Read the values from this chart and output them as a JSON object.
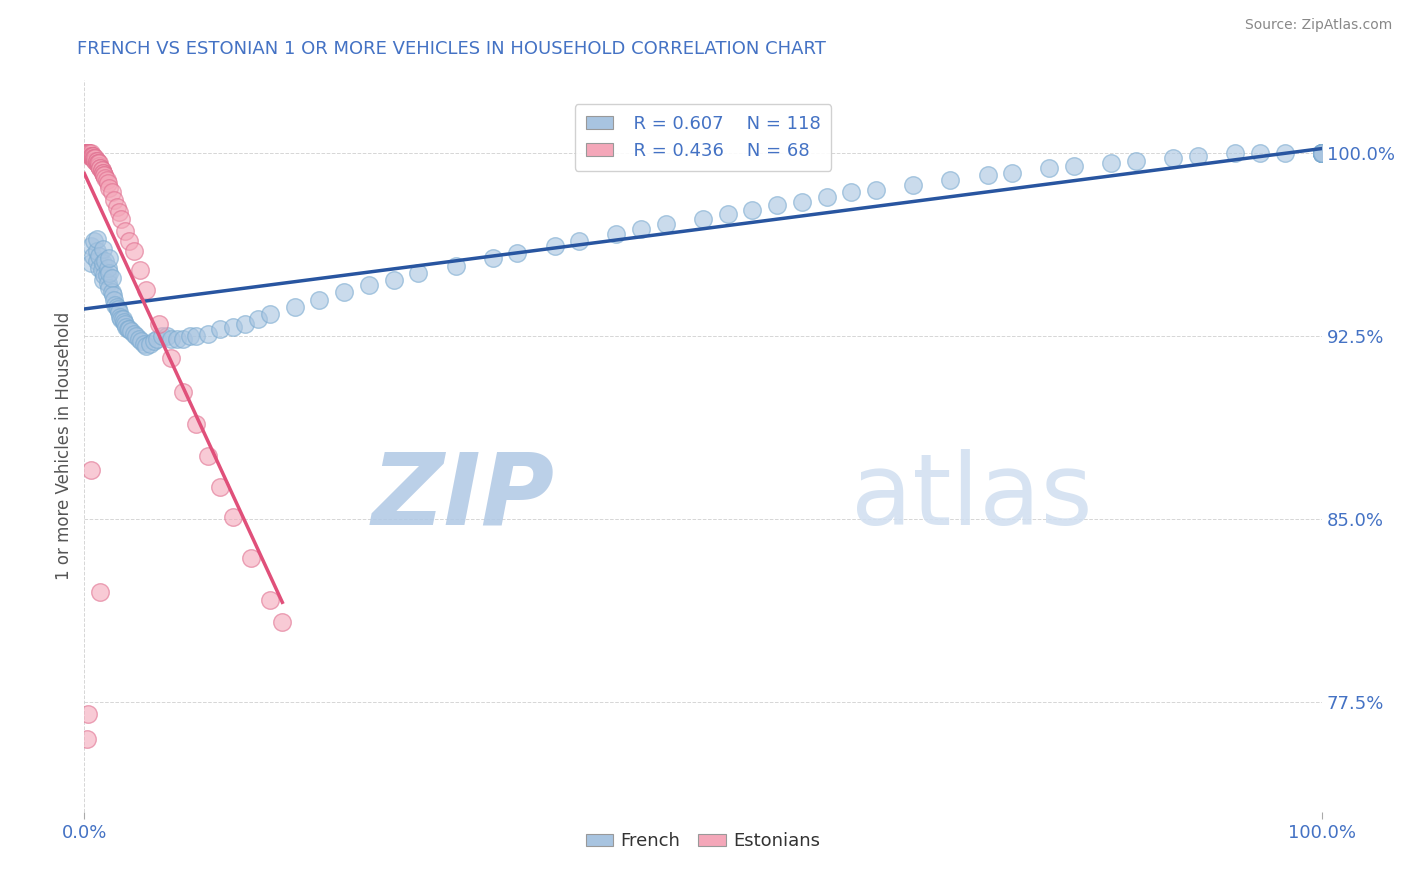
{
  "title": "FRENCH VS ESTONIAN 1 OR MORE VEHICLES IN HOUSEHOLD CORRELATION CHART",
  "source_text": "Source: ZipAtlas.com",
  "ylabel": "1 or more Vehicles in Household",
  "xlim": [
    0.0,
    1.0
  ],
  "ylim": [
    0.73,
    1.03
  ],
  "ytick_labels": [
    "77.5%",
    "85.0%",
    "92.5%",
    "100.0%"
  ],
  "ytick_values": [
    0.775,
    0.85,
    0.925,
    1.0
  ],
  "legend_r_french": "R = 0.607",
  "legend_n_french": "N = 118",
  "legend_r_estonian": "R = 0.436",
  "legend_n_estonian": "N = 68",
  "french_color": "#a8c4e0",
  "french_edge_color": "#7aaad0",
  "estonian_color": "#f4a7b9",
  "estonian_edge_color": "#e07090",
  "french_line_color": "#2855a0",
  "estonian_line_color": "#e0507a",
  "watermark_zip": "ZIP",
  "watermark_atlas": "atlas",
  "watermark_color": "#d0dff0",
  "title_color": "#4472c4",
  "axis_label_color": "#555555",
  "tick_label_color": "#4472c4",
  "source_color": "#888888",
  "french_x": [
    0.005,
    0.005,
    0.007,
    0.008,
    0.01,
    0.01,
    0.01,
    0.012,
    0.012,
    0.014,
    0.015,
    0.015,
    0.015,
    0.016,
    0.017,
    0.018,
    0.019,
    0.019,
    0.02,
    0.02,
    0.02,
    0.022,
    0.022,
    0.023,
    0.024,
    0.025,
    0.026,
    0.027,
    0.028,
    0.029,
    0.03,
    0.031,
    0.032,
    0.033,
    0.034,
    0.035,
    0.036,
    0.038,
    0.04,
    0.042,
    0.044,
    0.046,
    0.048,
    0.05,
    0.053,
    0.056,
    0.059,
    0.063,
    0.067,
    0.07,
    0.075,
    0.08,
    0.085,
    0.09,
    0.1,
    0.11,
    0.12,
    0.13,
    0.14,
    0.15,
    0.17,
    0.19,
    0.21,
    0.23,
    0.25,
    0.27,
    0.3,
    0.33,
    0.35,
    0.38,
    0.4,
    0.43,
    0.45,
    0.47,
    0.5,
    0.52,
    0.54,
    0.56,
    0.58,
    0.6,
    0.62,
    0.64,
    0.67,
    0.7,
    0.73,
    0.75,
    0.78,
    0.8,
    0.83,
    0.85,
    0.88,
    0.9,
    0.93,
    0.95,
    0.97,
    1.0,
    1.0,
    1.0,
    1.0,
    1.0,
    1.0,
    1.0,
    1.0,
    1.0,
    1.0,
    1.0,
    1.0,
    1.0,
    1.0,
    1.0,
    1.0,
    1.0,
    1.0,
    1.0,
    1.0,
    1.0,
    1.0,
    1.0
  ],
  "french_y": [
    0.955,
    0.962,
    0.958,
    0.964,
    0.956,
    0.96,
    0.965,
    0.953,
    0.958,
    0.952,
    0.948,
    0.955,
    0.961,
    0.95,
    0.956,
    0.95,
    0.947,
    0.953,
    0.945,
    0.951,
    0.957,
    0.943,
    0.949,
    0.942,
    0.94,
    0.938,
    0.937,
    0.936,
    0.935,
    0.933,
    0.932,
    0.932,
    0.931,
    0.93,
    0.929,
    0.928,
    0.928,
    0.927,
    0.926,
    0.925,
    0.924,
    0.923,
    0.922,
    0.921,
    0.922,
    0.923,
    0.924,
    0.925,
    0.925,
    0.924,
    0.924,
    0.924,
    0.925,
    0.925,
    0.926,
    0.928,
    0.929,
    0.93,
    0.932,
    0.934,
    0.937,
    0.94,
    0.943,
    0.946,
    0.948,
    0.951,
    0.954,
    0.957,
    0.959,
    0.962,
    0.964,
    0.967,
    0.969,
    0.971,
    0.973,
    0.975,
    0.977,
    0.979,
    0.98,
    0.982,
    0.984,
    0.985,
    0.987,
    0.989,
    0.991,
    0.992,
    0.994,
    0.995,
    0.996,
    0.997,
    0.998,
    0.999,
    1.0,
    1.0,
    1.0,
    1.0,
    1.0,
    1.0,
    1.0,
    1.0,
    1.0,
    1.0,
    1.0,
    1.0,
    1.0,
    1.0,
    1.0,
    1.0,
    1.0,
    1.0,
    1.0,
    1.0,
    1.0,
    1.0,
    1.0,
    1.0,
    1.0,
    1.0
  ],
  "estonian_x": [
    0.001,
    0.001,
    0.002,
    0.002,
    0.003,
    0.003,
    0.003,
    0.004,
    0.004,
    0.004,
    0.005,
    0.005,
    0.005,
    0.006,
    0.006,
    0.006,
    0.007,
    0.007,
    0.007,
    0.008,
    0.008,
    0.009,
    0.009,
    0.009,
    0.01,
    0.01,
    0.01,
    0.011,
    0.011,
    0.012,
    0.012,
    0.012,
    0.013,
    0.013,
    0.014,
    0.014,
    0.015,
    0.015,
    0.016,
    0.016,
    0.017,
    0.018,
    0.019,
    0.02,
    0.022,
    0.024,
    0.026,
    0.028,
    0.03,
    0.033,
    0.036,
    0.04,
    0.045,
    0.05,
    0.06,
    0.07,
    0.08,
    0.09,
    0.1,
    0.11,
    0.12,
    0.135,
    0.15,
    0.16,
    0.013,
    0.005,
    0.003,
    0.002
  ],
  "estonian_y": [
    1.0,
    1.0,
    1.0,
    1.0,
    1.0,
    1.0,
    1.0,
    1.0,
    1.0,
    0.999,
    0.999,
    0.999,
    1.0,
    0.999,
    0.999,
    0.999,
    0.998,
    0.998,
    0.999,
    0.998,
    0.998,
    0.997,
    0.997,
    0.998,
    0.996,
    0.997,
    0.997,
    0.996,
    0.996,
    0.995,
    0.995,
    0.996,
    0.994,
    0.994,
    0.993,
    0.993,
    0.992,
    0.992,
    0.991,
    0.991,
    0.99,
    0.989,
    0.988,
    0.986,
    0.984,
    0.981,
    0.978,
    0.976,
    0.973,
    0.968,
    0.964,
    0.96,
    0.952,
    0.944,
    0.93,
    0.916,
    0.902,
    0.889,
    0.876,
    0.863,
    0.851,
    0.834,
    0.817,
    0.808,
    0.82,
    0.87,
    0.77,
    0.76
  ]
}
